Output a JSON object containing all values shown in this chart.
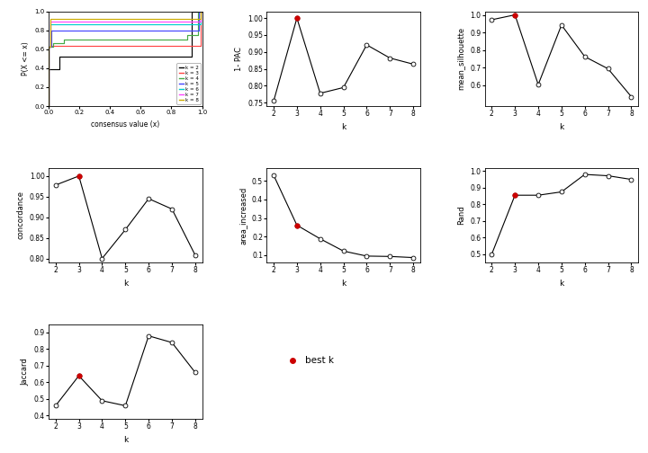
{
  "k_values": [
    2,
    3,
    4,
    5,
    6,
    7,
    8
  ],
  "one_minus_pac": [
    0.755,
    1.0,
    0.778,
    0.795,
    0.921,
    0.882,
    0.864
  ],
  "one_minus_pac_best": 3,
  "mean_silhouette": [
    0.972,
    1.0,
    0.603,
    0.942,
    0.762,
    0.693,
    0.534
  ],
  "mean_silhouette_best": 3,
  "concordance_k": [
    2,
    3,
    4,
    5,
    6,
    7,
    8
  ],
  "concordance_v": [
    0.978,
    1.0,
    0.8,
    0.87,
    0.945,
    0.92,
    0.808
  ],
  "concordance_best": 3,
  "area_increased": [
    0.53,
    0.261,
    0.188,
    0.122,
    0.095,
    0.093,
    0.087
  ],
  "area_increased_best": 3,
  "rand": [
    0.5,
    0.855,
    0.855,
    0.875,
    0.98,
    0.972,
    0.95
  ],
  "rand_best": 3,
  "jaccard": [
    0.46,
    0.64,
    0.49,
    0.46,
    0.88,
    0.84,
    0.66
  ],
  "jaccard_best": 3,
  "ecdf_colors": [
    "#000000",
    "#FF4444",
    "#44AA44",
    "#4444FF",
    "#00CCCC",
    "#FF44FF",
    "#CCAA00"
  ],
  "ecdf_labels": [
    "k = 2",
    "k = 3",
    "k = 4",
    "k = 5",
    "k = 6",
    "k = 7",
    "k = 8"
  ],
  "red_dot": "#CC0000",
  "background_color": "#FFFFFF",
  "panel_bg": "#FFFFFF"
}
